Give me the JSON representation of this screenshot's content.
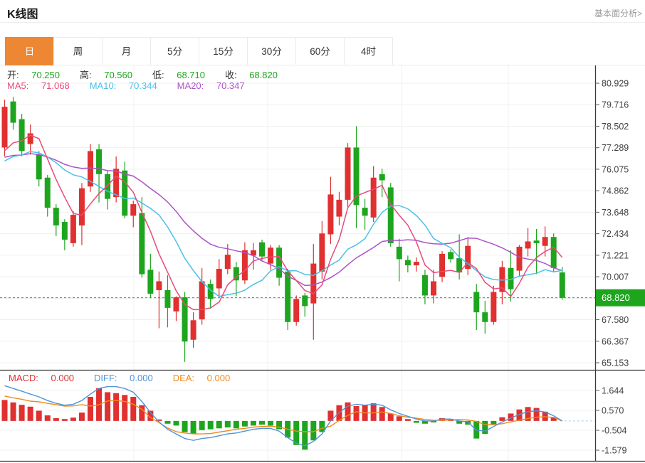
{
  "header": {
    "title": "K线图",
    "link": "基本面分析>"
  },
  "tabs": {
    "items": [
      {
        "label": "日",
        "active": true
      },
      {
        "label": "周",
        "active": false
      },
      {
        "label": "月",
        "active": false
      },
      {
        "label": "5分",
        "active": false
      },
      {
        "label": "15分",
        "active": false
      },
      {
        "label": "30分",
        "active": false
      },
      {
        "label": "60分",
        "active": false
      },
      {
        "label": "4时",
        "active": false
      }
    ],
    "active_color": "#ed8733"
  },
  "legend": {
    "ohlc": [
      {
        "label": "开:",
        "value": "70.250"
      },
      {
        "label": "高:",
        "value": "70.560"
      },
      {
        "label": "低:",
        "value": "68.710"
      },
      {
        "label": "收:",
        "value": "68.820"
      }
    ],
    "ohlc_value_color": "#1ea51e",
    "ma": [
      {
        "label": "MA5:",
        "value": "71.068",
        "color": "#e74c78"
      },
      {
        "label": "MA10:",
        "value": "70.344",
        "color": "#4cc0e8"
      },
      {
        "label": "MA20:",
        "value": "70.347",
        "color": "#ab53c8"
      }
    ],
    "macd": [
      {
        "label": "MACD:",
        "value": "0.000",
        "color": "#e03030"
      },
      {
        "label": "DIFF:",
        "value": "0.000",
        "color": "#4f94d8"
      },
      {
        "label": "DEA:",
        "value": "0.000",
        "color": "#f08a1e"
      }
    ]
  },
  "colors": {
    "up": "#e03030",
    "down": "#1ea51e",
    "ma5": "#e74c78",
    "ma10": "#4cc0e8",
    "ma20": "#ab53c8",
    "diff": "#4f94d8",
    "dea": "#f08a1e",
    "axis_line": "#3a3a3a",
    "axis_text": "#3f3f3f",
    "grid": "#f0f0f0",
    "price_line": "#2ba52b",
    "price_label_bg": "#1ea51e",
    "zero_dash": "#aac9e9"
  },
  "chart_data": [
    {
      "type": "candlestick",
      "panel": "main",
      "y_ticks": [
        80.929,
        79.716,
        78.502,
        77.289,
        76.075,
        74.862,
        73.648,
        72.434,
        71.221,
        70.007,
        68.794,
        67.58,
        66.367,
        65.153
      ],
      "current_price": 68.82,
      "current_price_label": "68.820",
      "ma_periods": [
        5,
        10,
        20
      ],
      "ma_left_seed": {
        "ma5": 76.5,
        "ma10": 76.2,
        "ma20": 76.6
      },
      "candles_ohlc": [
        [
          77.3,
          80.0,
          76.8,
          79.6
        ],
        [
          79.9,
          80.15,
          78.3,
          78.7
        ],
        [
          78.9,
          79.2,
          76.8,
          77.1
        ],
        [
          77.5,
          78.6,
          76.9,
          78.1
        ],
        [
          76.9,
          77.1,
          75.1,
          75.5
        ],
        [
          75.6,
          75.75,
          73.4,
          73.9
        ],
        [
          73.9,
          74.1,
          72.3,
          72.9
        ],
        [
          73.1,
          73.25,
          71.5,
          72.1
        ],
        [
          71.9,
          73.7,
          71.7,
          73.5
        ],
        [
          72.9,
          75.3,
          71.8,
          75.0
        ],
        [
          75.1,
          77.5,
          74.8,
          77.1
        ],
        [
          77.2,
          77.5,
          74.2,
          75.8
        ],
        [
          75.8,
          76.0,
          73.8,
          74.4
        ],
        [
          74.5,
          76.8,
          74.2,
          76.1
        ],
        [
          76.0,
          76.5,
          73.3,
          73.45
        ],
        [
          73.45,
          74.3,
          72.8,
          74.1
        ],
        [
          73.6,
          74.5,
          69.95,
          70.15
        ],
        [
          70.4,
          71.3,
          68.8,
          69.05
        ],
        [
          69.25,
          70.3,
          67.1,
          69.75
        ],
        [
          69.25,
          70.1,
          67.15,
          68.25
        ],
        [
          68.05,
          68.9,
          67.5,
          68.85
        ],
        [
          68.85,
          69.15,
          65.2,
          66.35
        ],
        [
          66.45,
          68.0,
          66.0,
          67.55
        ],
        [
          67.6,
          70.5,
          67.3,
          69.75
        ],
        [
          69.6,
          69.85,
          68.2,
          68.75
        ],
        [
          69.35,
          71.0,
          68.9,
          70.45
        ],
        [
          70.45,
          71.85,
          70.15,
          71.25
        ],
        [
          70.55,
          70.85,
          68.9,
          69.8
        ],
        [
          69.8,
          71.95,
          69.6,
          71.5
        ],
        [
          71.2,
          71.9,
          70.4,
          71.5
        ],
        [
          71.95,
          72.1,
          70.9,
          71.15
        ],
        [
          70.75,
          71.8,
          70.4,
          71.65
        ],
        [
          71.65,
          71.8,
          69.5,
          69.95
        ],
        [
          70.3,
          70.45,
          67.0,
          67.45
        ],
        [
          67.45,
          68.95,
          67.25,
          68.75
        ],
        [
          68.95,
          69.1,
          67.75,
          68.35
        ],
        [
          68.5,
          71.85,
          66.45,
          70.75
        ],
        [
          70.3,
          73.15,
          69.85,
          72.45
        ],
        [
          72.4,
          75.65,
          71.85,
          74.65
        ],
        [
          73.4,
          74.8,
          72.9,
          74.35
        ],
        [
          74.35,
          77.55,
          73.95,
          77.3
        ],
        [
          77.3,
          78.5,
          72.75,
          74.05
        ],
        [
          73.9,
          74.4,
          72.65,
          73.45
        ],
        [
          73.35,
          76.25,
          73.1,
          75.6
        ],
        [
          75.8,
          76.1,
          74.5,
          75.45
        ],
        [
          75.05,
          75.3,
          71.7,
          71.9
        ],
        [
          71.7,
          72.15,
          69.75,
          71.0
        ],
        [
          70.95,
          71.2,
          70.25,
          70.65
        ],
        [
          70.65,
          71.1,
          70.3,
          70.85
        ],
        [
          70.1,
          70.4,
          68.45,
          68.95
        ],
        [
          68.95,
          70.4,
          68.5,
          69.75
        ],
        [
          70.0,
          71.45,
          69.7,
          71.3
        ],
        [
          71.4,
          71.55,
          70.8,
          71.0
        ],
        [
          71.05,
          72.4,
          69.85,
          70.25
        ],
        [
          70.45,
          72.25,
          70.1,
          71.75
        ],
        [
          69.15,
          69.6,
          67.0,
          68.0
        ],
        [
          68.0,
          68.65,
          66.8,
          67.45
        ],
        [
          67.45,
          69.5,
          67.3,
          69.15
        ],
        [
          69.15,
          70.9,
          68.45,
          70.55
        ],
        [
          70.5,
          71.5,
          68.6,
          69.3
        ],
        [
          70.35,
          71.8,
          70.05,
          71.7
        ],
        [
          71.6,
          72.75,
          71.15,
          72.0
        ],
        [
          72.05,
          72.7,
          70.15,
          71.9
        ],
        [
          71.75,
          72.85,
          71.15,
          72.25
        ],
        [
          72.25,
          72.45,
          70.3,
          70.5
        ],
        [
          70.25,
          70.56,
          68.71,
          68.82
        ]
      ]
    },
    {
      "type": "bar",
      "panel": "macd",
      "y_ticks": [
        1.644,
        0.57,
        -0.504,
        -1.579
      ],
      "histogram": [
        1.13,
        1.0,
        0.87,
        0.77,
        0.55,
        0.3,
        0.15,
        0.1,
        0.18,
        0.45,
        1.3,
        1.77,
        1.55,
        1.5,
        1.4,
        1.3,
        0.85,
        0.55,
        0.08,
        -0.15,
        -0.25,
        -0.6,
        -0.7,
        -0.5,
        -0.45,
        -0.4,
        -0.35,
        -0.4,
        -0.3,
        -0.25,
        -0.2,
        -0.25,
        -0.45,
        -0.9,
        -1.3,
        -1.55,
        -1.05,
        -0.6,
        0.55,
        0.85,
        1.0,
        0.8,
        0.85,
        0.95,
        0.75,
        0.4,
        0.25,
        0.1,
        -0.1,
        -0.15,
        -0.08,
        0.15,
        0.1,
        -0.15,
        -0.2,
        -0.95,
        -0.7,
        -0.2,
        0.2,
        0.4,
        0.62,
        0.75,
        0.7,
        0.5,
        0.18,
        0.0
      ],
      "diff": [
        1.9,
        1.75,
        1.6,
        1.45,
        1.3,
        1.1,
        0.95,
        0.85,
        0.9,
        1.1,
        1.45,
        1.75,
        1.85,
        1.85,
        1.75,
        1.55,
        1.05,
        0.45,
        -0.05,
        -0.45,
        -0.7,
        -0.95,
        -1.05,
        -0.95,
        -0.9,
        -0.8,
        -0.7,
        -0.65,
        -0.55,
        -0.45,
        -0.4,
        -0.4,
        -0.55,
        -0.9,
        -1.2,
        -1.35,
        -1.1,
        -0.7,
        0.0,
        0.45,
        0.8,
        0.9,
        0.85,
        0.9,
        0.85,
        0.6,
        0.4,
        0.25,
        0.1,
        0.0,
        0.0,
        0.1,
        0.1,
        0.0,
        -0.05,
        -0.5,
        -0.55,
        -0.3,
        -0.05,
        0.15,
        0.35,
        0.5,
        0.55,
        0.48,
        0.28,
        0.0
      ],
      "dea": [
        1.34,
        1.25,
        1.17,
        1.07,
        1.03,
        0.95,
        0.88,
        0.8,
        0.81,
        0.88,
        0.8,
        0.87,
        1.08,
        1.1,
        1.05,
        0.9,
        0.63,
        0.18,
        -0.09,
        -0.38,
        -0.58,
        -0.65,
        -0.7,
        -0.7,
        -0.68,
        -0.6,
        -0.53,
        -0.45,
        -0.4,
        -0.33,
        -0.3,
        -0.28,
        -0.33,
        -0.45,
        -0.55,
        -0.58,
        -0.58,
        -0.4,
        -0.28,
        0.03,
        0.3,
        0.5,
        0.43,
        0.43,
        0.48,
        0.4,
        0.28,
        0.2,
        0.15,
        0.08,
        0.04,
        0.03,
        0.05,
        0.08,
        0.05,
        -0.03,
        -0.2,
        -0.2,
        -0.15,
        -0.05,
        0.04,
        0.13,
        0.2,
        0.23,
        0.19,
        0.0
      ]
    }
  ]
}
